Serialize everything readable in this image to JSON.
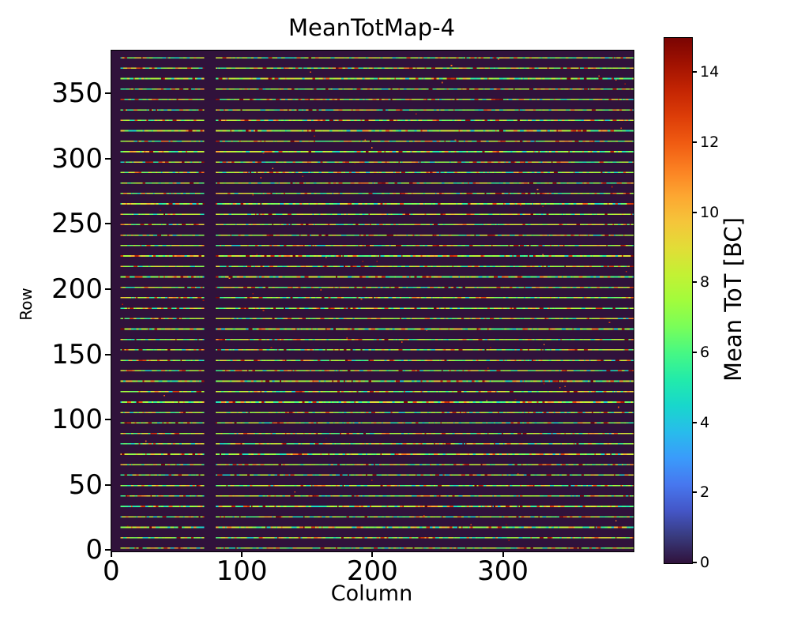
{
  "figure": {
    "background": "#ffffff",
    "axes_color": "#000000",
    "text_color": "#000000"
  },
  "chart_data": {
    "type": "heatmap",
    "title": "MeanTotMap-4",
    "xlabel": "Column",
    "ylabel": "Row",
    "x_ticks": [
      0,
      100,
      200,
      300
    ],
    "y_ticks": [
      0,
      50,
      100,
      150,
      200,
      250,
      300,
      350
    ],
    "x_range": [
      0,
      400
    ],
    "y_range": [
      0,
      384
    ],
    "n_cols": 400,
    "n_rows": 384,
    "grid": false,
    "colorbar": {
      "label": "Mean ToT [BC]",
      "ticks": [
        0,
        2,
        4,
        6,
        8,
        10,
        12,
        14
      ],
      "vmin": 0,
      "vmax": 15,
      "colormap": "turbo",
      "stops": [
        [
          0.0,
          "#30123b"
        ],
        [
          0.05,
          "#383a7c"
        ],
        [
          0.1,
          "#4456c7"
        ],
        [
          0.15,
          "#4777ef"
        ],
        [
          0.2,
          "#3a9bfb"
        ],
        [
          0.25,
          "#28bceb"
        ],
        [
          0.3,
          "#18d7cc"
        ],
        [
          0.35,
          "#22ebaa"
        ],
        [
          0.4,
          "#46f884"
        ],
        [
          0.45,
          "#79fe59"
        ],
        [
          0.5,
          "#a2fc3c"
        ],
        [
          0.55,
          "#c3f134"
        ],
        [
          0.6,
          "#e2dd37"
        ],
        [
          0.65,
          "#f5c53a"
        ],
        [
          0.7,
          "#fda631"
        ],
        [
          0.75,
          "#fb8022"
        ],
        [
          0.8,
          "#f05b12"
        ],
        [
          0.85,
          "#dd3d08"
        ],
        [
          0.9,
          "#c42503"
        ],
        [
          0.95,
          "#a11201"
        ],
        [
          1.0,
          "#7a0403"
        ]
      ]
    },
    "pattern": {
      "description": "Pixel-detector mean Time-over-Threshold map: background value 0 (dark purple); every 8th row is a bright stripe of per-pixel values ~4-15 BC (mostly green-yellow 6-9, with cyan and red/orange segments); columns 0-6 and 71-79 are dead (no stripe data); sparse isolated hot pixels (value ~11-15) scattered over the background.",
      "background_value": 0,
      "stripe_first_row": 2,
      "stripe_period": 8,
      "stripe_count": 48,
      "dead_column_ranges": [
        [
          0,
          6
        ],
        [
          71,
          79
        ]
      ],
      "stripe_value_range": [
        4,
        15
      ],
      "stripe_typical_value": 8,
      "noise_speck_count": 70,
      "noise_speck_value_range": [
        11,
        15
      ],
      "seed": 20
    }
  }
}
